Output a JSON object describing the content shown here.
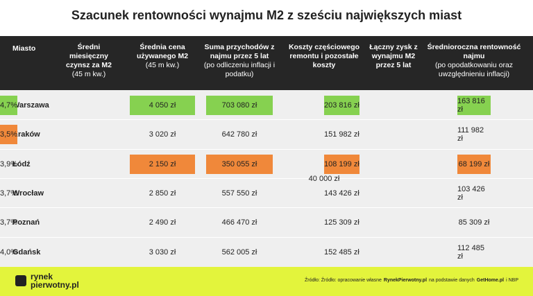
{
  "title": "Szacunek rentowności wynajmu M2 z sześciu największych miast",
  "table": {
    "headers": [
      {
        "bold": "Miasto"
      },
      {
        "bold": "Średni miesięczny czynsz za M2",
        "note": "(45 m kw.)"
      },
      {
        "bold": "Średnia cena używanego M2",
        "note": "(45 m kw.)"
      },
      {
        "bold": "Suma przychodów z najmu przez 5 lat",
        "note": "(po odliczeniu inflacji i podatku)"
      },
      {
        "bold": "Koszty częściowego remontu i pozostałe koszty"
      },
      {
        "bold": "Łączny zysk z wynajmu M2 przez 5 lat"
      },
      {
        "bold": "Średnioroczna rentowność najmu",
        "note": "(po opodatkowaniu oraz uwzględnieniu inflacji)"
      }
    ],
    "shared_cost": "40 000 zł",
    "rows": [
      {
        "city": "Warszawa",
        "cells": [
          "4 050 zł",
          "703 080 zł",
          "203 816 zł",
          "163 816 zł",
          "4,7%"
        ],
        "colors": [
          "#86d150",
          "#86d150",
          "#86d150",
          "#86d150",
          "#86d150"
        ]
      },
      {
        "city": "Kraków",
        "cells": [
          "3 020 zł",
          "642 780 zł",
          "151 982 zł",
          "111 982 zł",
          "3,5%"
        ],
        "colors": [
          null,
          null,
          null,
          null,
          "#f0883a"
        ]
      },
      {
        "city": "Łódź",
        "cells": [
          "2 150 zł",
          "350 055 zł",
          "108 199 zł",
          "68 199 zł",
          "3,9%"
        ],
        "colors": [
          "#f0883a",
          "#f0883a",
          "#f0883a",
          "#f0883a",
          null
        ]
      },
      {
        "city": "Wrocław",
        "cells": [
          "2 850 zł",
          "557 550 zł",
          "143 426 zł",
          "103 426 zł",
          "3,7%"
        ],
        "colors": [
          null,
          null,
          null,
          null,
          null
        ]
      },
      {
        "city": "Poznań",
        "cells": [
          "2 490 zł",
          "466 470 zł",
          "125 309 zł",
          "85 309 zł",
          "3,7%"
        ],
        "colors": [
          null,
          null,
          null,
          null,
          null
        ]
      },
      {
        "city": "Gdańsk",
        "cells": [
          "3 030 zł",
          "562 005 zł",
          "152 485 zł",
          "112 485 zł",
          "4,0%"
        ],
        "colors": [
          null,
          null,
          null,
          null,
          null
        ]
      }
    ]
  },
  "footer": {
    "logo_top": "rynek",
    "logo_bottom": "pierwotny.pl",
    "source": [
      "Źródło: Źródło: opracowanie własne",
      "RynekPierwotny.pl",
      "na podstawie danych",
      "GetHome.pl",
      "i NBP"
    ]
  }
}
